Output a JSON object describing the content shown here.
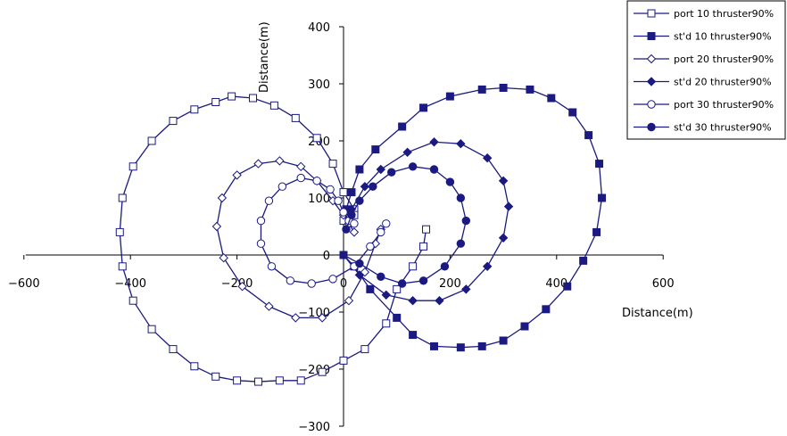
{
  "chart_data": {
    "type": "scatter",
    "xlabel": "Distance(m)",
    "ylabel": "Distance(m)",
    "xlim": [
      -600,
      600
    ],
    "ylim": [
      -300,
      400
    ],
    "x_ticks": [
      -600,
      -400,
      -200,
      0,
      200,
      400,
      600
    ],
    "y_ticks": [
      -300,
      -200,
      -100,
      0,
      100,
      200,
      300,
      400
    ],
    "x_tick_labels": [
      "−600",
      "−400",
      "−200",
      "0",
      "200",
      "400",
      "600"
    ],
    "y_tick_labels": [
      "−300",
      "−200",
      "−100",
      "0",
      "100",
      "200",
      "300",
      "400"
    ],
    "grid": false,
    "legend_position": "top-right",
    "line_color": "#1a1a80",
    "series": [
      {
        "name": "port 10 thruster90%",
        "marker": "square-open",
        "x": [
          155,
          150,
          130,
          100,
          80,
          40,
          0,
          -40,
          -80,
          -120,
          -160,
          -200,
          -240,
          -280,
          -320,
          -360,
          -395,
          -415,
          -420,
          -415,
          -395,
          -360,
          -320,
          -280,
          -240,
          -210,
          -170,
          -130,
          -90,
          -50,
          -20,
          0,
          20,
          20,
          10,
          0
        ],
        "y": [
          45,
          15,
          -20,
          -60,
          -120,
          -165,
          -185,
          -205,
          -220,
          -220,
          -222,
          -220,
          -213,
          -195,
          -165,
          -130,
          -80,
          -20,
          40,
          100,
          155,
          200,
          235,
          255,
          268,
          278,
          275,
          262,
          240,
          205,
          160,
          110,
          80,
          70,
          65,
          60
        ]
      },
      {
        "name": "st'd 10 thruster90%",
        "marker": "square-filled",
        "x": [
          0,
          20,
          50,
          100,
          130,
          170,
          220,
          260,
          300,
          340,
          380,
          420,
          450,
          475,
          485,
          480,
          460,
          430,
          390,
          350,
          300,
          260,
          200,
          150,
          110,
          60,
          30,
          15,
          5
        ],
        "y": [
          0,
          -20,
          -60,
          -110,
          -140,
          -160,
          -162,
          -160,
          -150,
          -125,
          -95,
          -55,
          -10,
          40,
          100,
          160,
          210,
          250,
          275,
          290,
          293,
          290,
          278,
          258,
          225,
          185,
          150,
          110,
          80
        ]
      },
      {
        "name": "port 20 thruster90%",
        "marker": "diamond-open",
        "x": [
          70,
          60,
          40,
          10,
          -40,
          -90,
          -140,
          -190,
          -225,
          -238,
          -228,
          -200,
          -160,
          -120,
          -80,
          -50,
          -20,
          0,
          10,
          20
        ],
        "y": [
          45,
          20,
          -30,
          -80,
          -110,
          -110,
          -90,
          -55,
          -5,
          50,
          100,
          140,
          160,
          165,
          155,
          130,
          95,
          70,
          55,
          40
        ]
      },
      {
        "name": "st'd 20 thruster90%",
        "marker": "diamond-filled",
        "x": [
          0,
          30,
          80,
          130,
          180,
          230,
          270,
          300,
          310,
          300,
          270,
          220,
          170,
          120,
          70,
          40,
          15
        ],
        "y": [
          0,
          -35,
          -70,
          -80,
          -80,
          -60,
          -20,
          30,
          85,
          130,
          170,
          195,
          198,
          180,
          150,
          120,
          80
        ]
      },
      {
        "name": "port 30 thruster90%",
        "marker": "circle-open",
        "x": [
          80,
          70,
          50,
          20,
          -20,
          -60,
          -100,
          -135,
          -155,
          -155,
          -140,
          -115,
          -80,
          -50,
          -25,
          -10,
          0,
          10,
          20
        ],
        "y": [
          55,
          40,
          15,
          -20,
          -42,
          -50,
          -45,
          -20,
          20,
          60,
          95,
          120,
          135,
          130,
          115,
          95,
          75,
          60,
          55
        ]
      },
      {
        "name": "st'd 30 thruster90%",
        "marker": "circle-filled",
        "x": [
          0,
          30,
          70,
          110,
          150,
          190,
          220,
          230,
          220,
          200,
          170,
          130,
          90,
          55,
          30,
          15,
          5
        ],
        "y": [
          0,
          -15,
          -38,
          -50,
          -45,
          -20,
          20,
          60,
          100,
          128,
          150,
          155,
          145,
          120,
          95,
          70,
          45
        ]
      }
    ]
  }
}
